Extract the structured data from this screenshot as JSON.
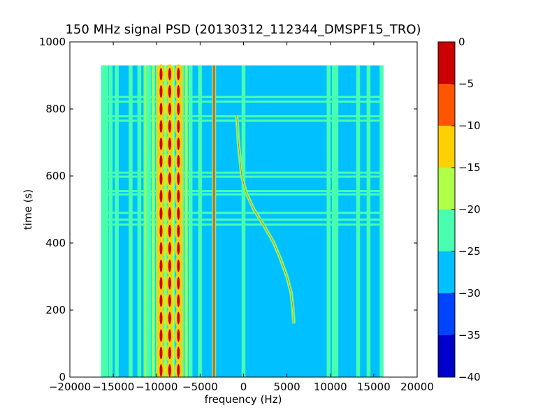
{
  "chart_data": {
    "type": "heatmap",
    "title": "150 MHz signal PSD (20130312_112344_DMSPF15_TRO)",
    "xlabel": "frequency (Hz)",
    "ylabel": "time (s)",
    "xlim": [
      -20000,
      20000
    ],
    "ylim": [
      0,
      1000
    ],
    "xticks": [
      -20000,
      -15000,
      -10000,
      -5000,
      0,
      5000,
      10000,
      15000,
      20000
    ],
    "yticks": [
      0,
      200,
      400,
      600,
      800,
      1000
    ],
    "data_extent": {
      "x": [
        -16200,
        16000
      ],
      "y": [
        0,
        930
      ]
    },
    "background_level": -27.5,
    "colorbar": {
      "levels": [
        -40,
        -35,
        -30,
        -25,
        -20,
        -15,
        -10,
        -5,
        0
      ],
      "tick_labels": [
        "-40",
        "-35",
        "-30",
        "-25",
        "-20",
        "-15",
        "-10",
        "-5",
        "0"
      ],
      "colors": [
        "#0000cc",
        "#0044ff",
        "#00c0ff",
        "#48ffb0",
        "#b0ff48",
        "#ffd000",
        "#ff5500",
        "#cc0000"
      ]
    },
    "vertical_lines": [
      {
        "x": -16200,
        "level": -22.5
      },
      {
        "x": -15800,
        "level": -22.5
      },
      {
        "x": -15300,
        "level": -22.5
      },
      {
        "x": -14600,
        "level": -22.5
      },
      {
        "x": -13000,
        "level": -22.5
      },
      {
        "x": -12000,
        "level": -22.5
      },
      {
        "x": -11300,
        "level": -17.5
      },
      {
        "x": -10900,
        "level": -22.5
      },
      {
        "x": -10400,
        "level": -17.5
      },
      {
        "x": -9900,
        "level": -12.5
      },
      {
        "x": -9500,
        "level": -2.5
      },
      {
        "x": -9000,
        "level": -17.5
      },
      {
        "x": -8500,
        "level": -12.5
      },
      {
        "x": -8100,
        "level": -17.5
      },
      {
        "x": -7500,
        "level": -2.5
      },
      {
        "x": -7100,
        "level": -12.5
      },
      {
        "x": -6600,
        "level": -17.5
      },
      {
        "x": -6100,
        "level": -22.5
      },
      {
        "x": -5000,
        "level": -22.5
      },
      {
        "x": -3400,
        "level": -7.5
      },
      {
        "x": 0,
        "level": -22.5
      },
      {
        "x": 9800,
        "level": -22.5
      },
      {
        "x": 10400,
        "level": -22.5
      },
      {
        "x": 10700,
        "level": -22.5
      },
      {
        "x": 13200,
        "level": -22.5
      },
      {
        "x": 14400,
        "level": -22.5
      },
      {
        "x": 15900,
        "level": -22.5
      }
    ],
    "horizontal_lines": [
      {
        "y": 545,
        "level": -22.5
      },
      {
        "y": 555,
        "level": -22.5
      },
      {
        "y": 598,
        "level": -22.5
      },
      {
        "y": 610,
        "level": -22.5
      },
      {
        "y": 765,
        "level": -22.5
      },
      {
        "y": 778,
        "level": -22.5
      },
      {
        "y": 822,
        "level": -22.5
      },
      {
        "y": 836,
        "level": -22.5
      },
      {
        "y": 455,
        "level": -22.5
      },
      {
        "y": 470,
        "level": -22.5
      },
      {
        "y": 490,
        "level": -22.5
      }
    ],
    "beacon_trace": {
      "level": -17.5,
      "points": [
        {
          "t": 160,
          "f": 5800
        },
        {
          "t": 200,
          "f": 5700
        },
        {
          "t": 250,
          "f": 5500
        },
        {
          "t": 300,
          "f": 5000
        },
        {
          "t": 350,
          "f": 4300
        },
        {
          "t": 400,
          "f": 3500
        },
        {
          "t": 450,
          "f": 2400
        },
        {
          "t": 500,
          "f": 1200
        },
        {
          "t": 550,
          "f": 300
        },
        {
          "t": 600,
          "f": -200
        },
        {
          "t": 650,
          "f": -400
        },
        {
          "t": 700,
          "f": -600
        },
        {
          "t": 750,
          "f": -700
        },
        {
          "t": 780,
          "f": -800
        }
      ]
    }
  }
}
